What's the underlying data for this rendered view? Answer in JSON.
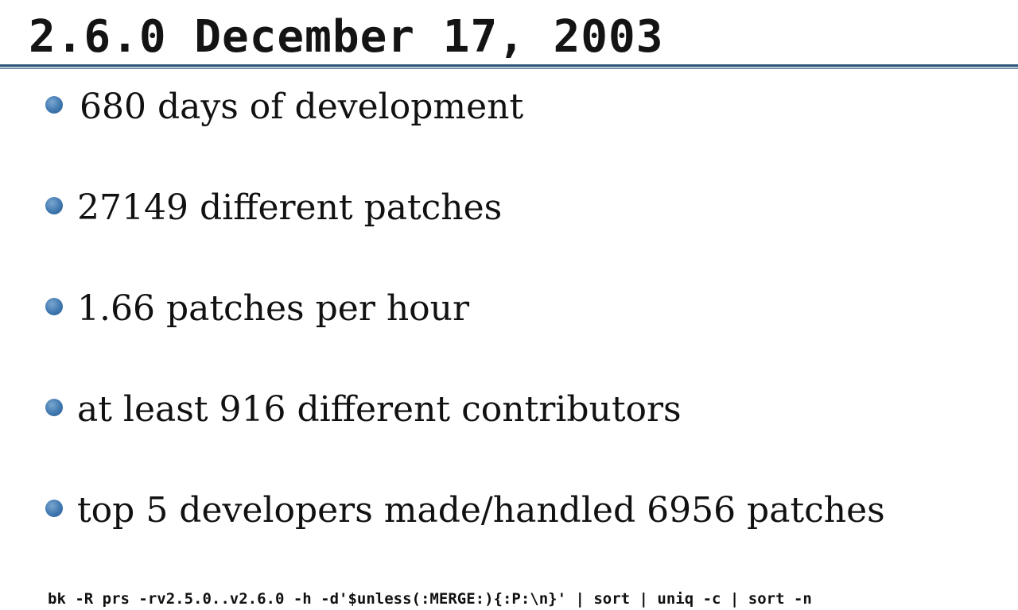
{
  "slide": {
    "title": "2.6.0 December 17, 2003",
    "accent_color": "#2c5478",
    "bullet_color": "#3f78b0",
    "bullets": [
      {
        "text": "680 days of development"
      },
      {
        "text": "27149 different patches"
      },
      {
        "text": "1.66 patches per hour"
      },
      {
        "text": "at least 916 different contributors"
      },
      {
        "text": "top 5 developers made/handled 6956 patches"
      }
    ],
    "command": "bk -R prs -rv2.5.0..v2.6.0 -h -d'$unless(:MERGE:){:P:\\n}' | sort | uniq -c | sort -n"
  }
}
